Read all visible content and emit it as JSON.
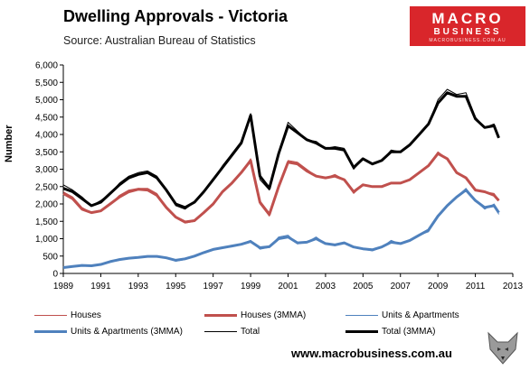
{
  "header": {
    "title": "Dwelling Approvals - Victoria",
    "subtitle": "Source: Australian Bureau of Statistics"
  },
  "logo": {
    "line1": "MACRO",
    "line2": "BUSINESS",
    "line3": "MACROBUSINESS.COM.AU"
  },
  "footer": {
    "website": "www.macrobusiness.com.au"
  },
  "chart_data": {
    "type": "line",
    "ylabel": "Number",
    "xlim": [
      1989,
      2013
    ],
    "ylim": [
      0,
      6000
    ],
    "yticks": [
      0,
      500,
      1000,
      1500,
      2000,
      2500,
      3000,
      3500,
      4000,
      4500,
      5000,
      5500,
      6000
    ],
    "ytick_labels": [
      "0",
      "500",
      "1,000",
      "1,500",
      "2,000",
      "2,500",
      "3,000",
      "3,500",
      "4,000",
      "4,500",
      "5,000",
      "5,500",
      "6,000"
    ],
    "xticks": [
      1989,
      1991,
      1993,
      1995,
      1997,
      1999,
      2001,
      2003,
      2005,
      2007,
      2009,
      2011,
      2013
    ],
    "grid": false,
    "legend_position": "bottom",
    "x": [
      1989.0,
      1989.5,
      1990.0,
      1990.5,
      1991.0,
      1991.5,
      1992.0,
      1992.5,
      1993.0,
      1993.5,
      1994.0,
      1994.5,
      1995.0,
      1995.5,
      1996.0,
      1996.5,
      1997.0,
      1997.5,
      1998.0,
      1998.5,
      1999.0,
      1999.5,
      2000.0,
      2000.5,
      2001.0,
      2001.5,
      2002.0,
      2002.5,
      2003.0,
      2003.5,
      2004.0,
      2004.5,
      2005.0,
      2005.5,
      2006.0,
      2006.5,
      2007.0,
      2007.5,
      2008.0,
      2008.5,
      2009.0,
      2009.5,
      2010.0,
      2010.5,
      2011.0,
      2011.5,
      2012.0,
      2012.25
    ],
    "series": [
      {
        "name": "Houses",
        "color": "#c0504d",
        "width": 1,
        "values": [
          2350,
          2200,
          1900,
          1750,
          1800,
          2000,
          2250,
          2400,
          2450,
          2450,
          2300,
          1900,
          1600,
          1450,
          1500,
          1750,
          2000,
          2350,
          2600,
          2900,
          3300,
          2000,
          1650,
          2500,
          3250,
          3200,
          3000,
          2800,
          2750,
          2850,
          2700,
          2300,
          2550,
          2500,
          2500,
          2600,
          2600,
          2700,
          2900,
          3100,
          3500,
          3300,
          2900,
          2750,
          2400,
          2350,
          2300,
          2100
        ]
      },
      {
        "name": "Houses (3MMA)",
        "color": "#c0504d",
        "width": 3,
        "values": [
          2300,
          2150,
          1850,
          1750,
          1800,
          2000,
          2200,
          2350,
          2420,
          2400,
          2250,
          1900,
          1620,
          1480,
          1520,
          1750,
          2000,
          2350,
          2600,
          2900,
          3250,
          2050,
          1700,
          2500,
          3200,
          3150,
          2950,
          2800,
          2750,
          2800,
          2700,
          2350,
          2550,
          2500,
          2500,
          2600,
          2600,
          2700,
          2900,
          3100,
          3450,
          3300,
          2900,
          2750,
          2400,
          2350,
          2250,
          2100
        ]
      },
      {
        "name": "Units & Apartments",
        "color": "#4f81bd",
        "width": 1,
        "values": [
          150,
          200,
          250,
          200,
          250,
          350,
          400,
          450,
          450,
          500,
          500,
          450,
          350,
          400,
          500,
          600,
          700,
          750,
          800,
          850,
          950,
          700,
          750,
          1050,
          1100,
          850,
          900,
          1050,
          850,
          800,
          900,
          750,
          700,
          650,
          750,
          950,
          850,
          950,
          1100,
          1200,
          1650,
          1950,
          2200,
          2450,
          2100,
          1850,
          2000,
          1700
        ]
      },
      {
        "name": "Units & Apartments (3MMA)",
        "color": "#4f81bd",
        "width": 3,
        "values": [
          170,
          200,
          230,
          220,
          260,
          340,
          400,
          440,
          460,
          490,
          490,
          450,
          380,
          420,
          500,
          600,
          690,
          740,
          790,
          840,
          920,
          740,
          770,
          1000,
          1050,
          880,
          900,
          1000,
          860,
          820,
          880,
          760,
          710,
          680,
          760,
          900,
          860,
          950,
          1100,
          1250,
          1650,
          1950,
          2200,
          2400,
          2100,
          1900,
          1950,
          1750
        ]
      },
      {
        "name": "Total",
        "color": "#000000",
        "width": 1,
        "values": [
          2550,
          2400,
          2200,
          1950,
          2100,
          2300,
          2600,
          2800,
          2900,
          2950,
          2800,
          2400,
          1950,
          1850,
          2050,
          2350,
          2700,
          3100,
          3450,
          3800,
          4600,
          2700,
          2400,
          3500,
          4350,
          4100,
          3850,
          3800,
          3600,
          3650,
          3600,
          3000,
          3300,
          3150,
          3250,
          3550,
          3500,
          3700,
          4000,
          4300,
          5000,
          5300,
          5150,
          5200,
          4500,
          4200,
          4300,
          3900
        ]
      },
      {
        "name": "Total (3MMA)",
        "color": "#000000",
        "width": 3,
        "values": [
          2450,
          2350,
          2150,
          1950,
          2050,
          2300,
          2550,
          2750,
          2850,
          2900,
          2750,
          2400,
          2000,
          1900,
          2050,
          2350,
          2700,
          3050,
          3400,
          3750,
          4550,
          2800,
          2450,
          3450,
          4250,
          4050,
          3850,
          3750,
          3600,
          3600,
          3550,
          3050,
          3300,
          3150,
          3250,
          3500,
          3500,
          3700,
          4000,
          4300,
          4900,
          5200,
          5100,
          5100,
          4450,
          4200,
          4250,
          3900
        ]
      }
    ]
  }
}
